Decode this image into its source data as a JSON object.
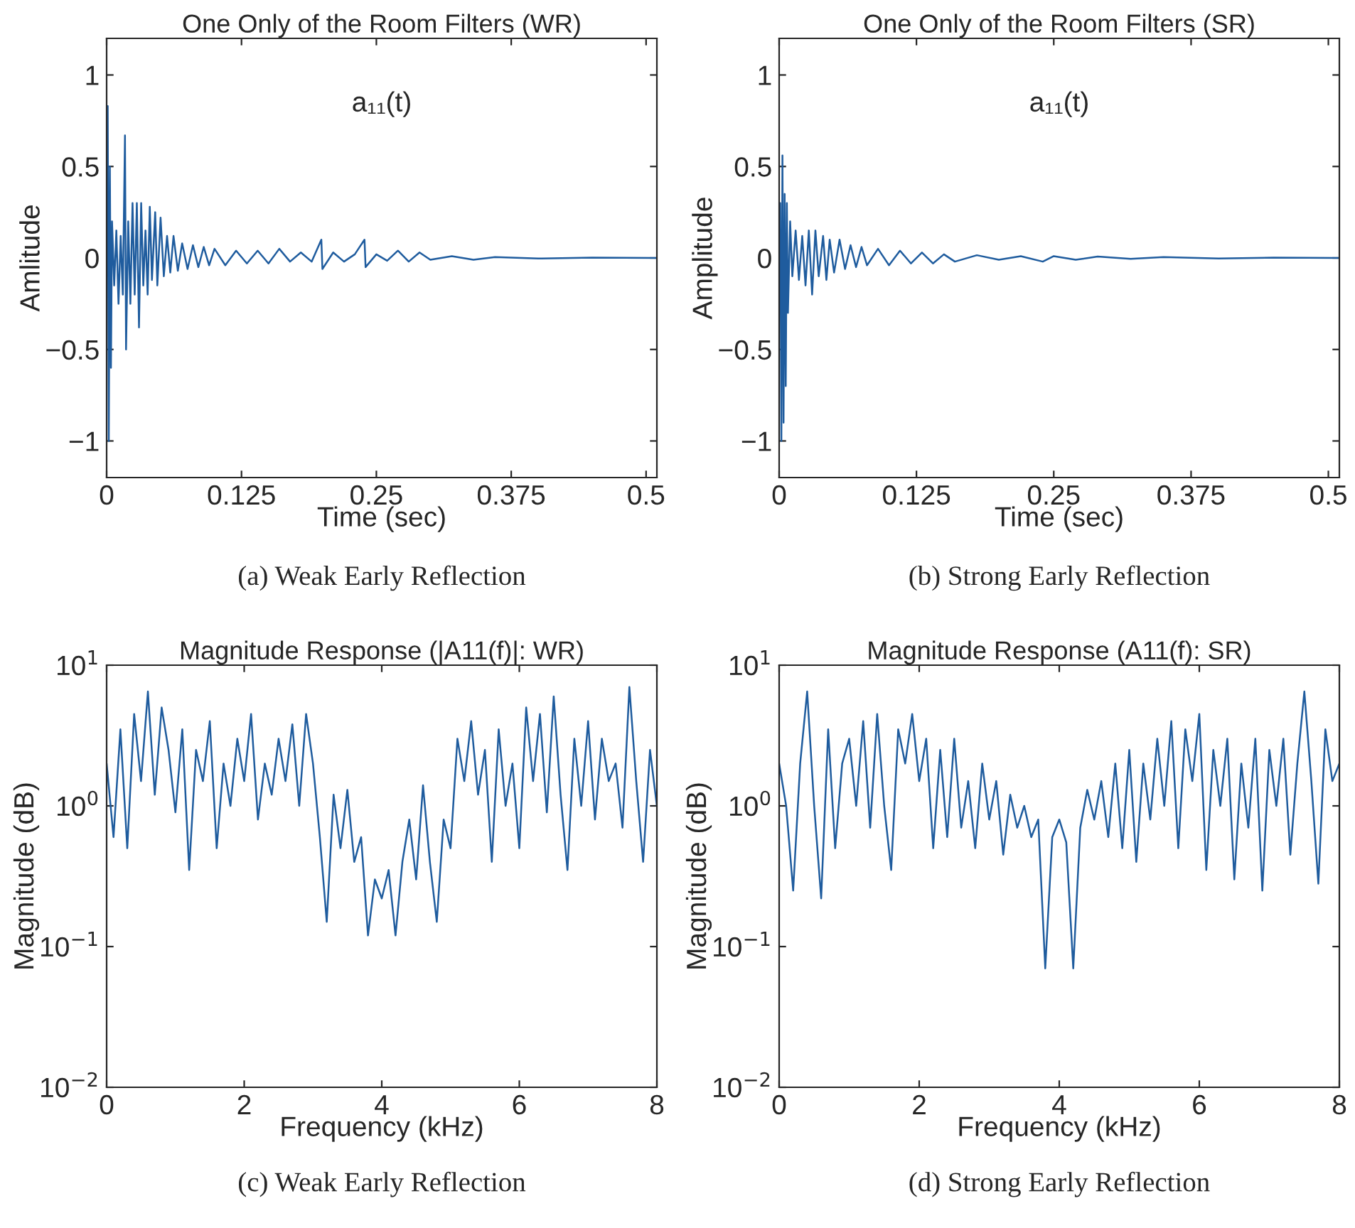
{
  "chart_data": [
    {
      "type": "line",
      "title": "One Only of the Room Filters (WR)",
      "xlabel": "Time (sec)",
      "ylabel": "Amlitude",
      "annotations": [
        "a₁₁(t)",
        "(a) Weak Early Reflection"
      ],
      "xlim": [
        0,
        0.51
      ],
      "ylim": [
        -1.2,
        1.2
      ],
      "xticks": [
        0,
        0.125,
        0.25,
        0.375,
        0.5
      ],
      "yticks": [
        {
          "value": -1,
          "label": "−1"
        },
        {
          "value": -0.5,
          "label": "−0.5"
        },
        0,
        0.5,
        1
      ],
      "x": [
        0,
        0.001,
        0.002,
        0.003,
        0.004,
        0.005,
        0.007,
        0.009,
        0.011,
        0.013,
        0.015,
        0.017,
        0.018,
        0.02,
        0.022,
        0.024,
        0.026,
        0.028,
        0.03,
        0.032,
        0.034,
        0.036,
        0.038,
        0.04,
        0.042,
        0.045,
        0.047,
        0.05,
        0.053,
        0.056,
        0.059,
        0.062,
        0.066,
        0.07,
        0.075,
        0.08,
        0.085,
        0.09,
        0.095,
        0.1,
        0.11,
        0.12,
        0.13,
        0.14,
        0.15,
        0.16,
        0.17,
        0.18,
        0.19,
        0.199,
        0.2,
        0.21,
        0.22,
        0.23,
        0.239,
        0.24,
        0.25,
        0.26,
        0.27,
        0.28,
        0.29,
        0.3,
        0.32,
        0.34,
        0.36,
        0.4,
        0.45,
        0.51
      ],
      "series": [
        {
          "color": "#1f5c9e",
          "values": [
            0,
            0.83,
            -1.0,
            0.5,
            -0.6,
            0.2,
            -0.15,
            0.15,
            -0.25,
            0.12,
            -0.2,
            0.67,
            -0.5,
            0.2,
            -0.25,
            0.3,
            -0.2,
            0.3,
            -0.38,
            0.3,
            -0.15,
            0.15,
            -0.2,
            0.28,
            -0.12,
            0.25,
            -0.15,
            0.22,
            -0.1,
            0.12,
            -0.08,
            0.12,
            -0.07,
            0.08,
            -0.06,
            0.07,
            -0.05,
            0.06,
            -0.04,
            0.05,
            -0.04,
            0.04,
            -0.03,
            0.04,
            -0.03,
            0.05,
            -0.02,
            0.03,
            -0.02,
            0.1,
            -0.06,
            0.03,
            -0.02,
            0.02,
            0.1,
            -0.05,
            0.02,
            -0.015,
            0.04,
            -0.02,
            0.03,
            -0.01,
            0.01,
            -0.01,
            0.005,
            -0.003,
            0.002,
            0
          ]
        }
      ]
    },
    {
      "type": "line",
      "title": "One Only of the Room Filters (SR)",
      "xlabel": "Time (sec)",
      "ylabel": "Amplitude",
      "annotations": [
        "a₁₁(t)",
        "(b) Strong Early Reflection"
      ],
      "xlim": [
        0,
        0.51
      ],
      "ylim": [
        -1.2,
        1.2
      ],
      "xticks": [
        0,
        0.125,
        0.25,
        0.375,
        0.5
      ],
      "yticks": [
        {
          "value": -1,
          "label": "−1"
        },
        {
          "value": -0.5,
          "label": "−0.5"
        },
        0,
        0.5,
        1
      ],
      "x": [
        0,
        0.001,
        0.002,
        0.003,
        0.004,
        0.005,
        0.006,
        0.007,
        0.008,
        0.01,
        0.012,
        0.015,
        0.018,
        0.021,
        0.024,
        0.027,
        0.03,
        0.033,
        0.036,
        0.04,
        0.043,
        0.046,
        0.05,
        0.055,
        0.06,
        0.065,
        0.07,
        0.075,
        0.08,
        0.09,
        0.1,
        0.11,
        0.12,
        0.13,
        0.14,
        0.15,
        0.16,
        0.18,
        0.2,
        0.22,
        0.24,
        0.25,
        0.27,
        0.29,
        0.32,
        0.35,
        0.4,
        0.45,
        0.51
      ],
      "series": [
        {
          "color": "#1f5c9e",
          "values": [
            0,
            0.3,
            -1.0,
            0.56,
            -0.9,
            0.35,
            -0.7,
            0.3,
            -0.3,
            0.2,
            -0.1,
            0.15,
            -0.12,
            0.12,
            -0.15,
            0.15,
            -0.2,
            0.15,
            -0.1,
            0.12,
            -0.12,
            0.1,
            -0.08,
            0.1,
            -0.06,
            0.07,
            -0.05,
            0.06,
            -0.04,
            0.05,
            -0.04,
            0.04,
            -0.03,
            0.03,
            -0.03,
            0.02,
            -0.02,
            0.015,
            -0.01,
            0.01,
            -0.02,
            0.01,
            -0.01,
            0.008,
            -0.005,
            0.005,
            -0.003,
            0.002,
            0
          ]
        }
      ]
    },
    {
      "type": "line",
      "title": "Magnitude Response (|A11(f)|: WR)",
      "xlabel": "Frequency (kHz)",
      "ylabel": "Magnitude (dB)",
      "log": "y",
      "annotations": [
        "(c) Weak Early Reflection"
      ],
      "xlim": [
        0,
        8
      ],
      "ylim": [
        0.01,
        10
      ],
      "xticks": [
        0,
        2,
        4,
        6,
        8
      ],
      "yticks": [
        {
          "value": 0.01,
          "label": "10$^{−2}$"
        },
        {
          "value": 0.1,
          "label": "10$^{−1}$"
        },
        {
          "value": 1,
          "label": "10$^{0}$"
        },
        {
          "value": 10,
          "label": "10$^{1}$"
        }
      ],
      "x": [
        0,
        0.1,
        0.2,
        0.3,
        0.4,
        0.5,
        0.6,
        0.7,
        0.8,
        0.9,
        1.0,
        1.1,
        1.2,
        1.3,
        1.4,
        1.5,
        1.6,
        1.7,
        1.8,
        1.9,
        2.0,
        2.1,
        2.2,
        2.3,
        2.4,
        2.5,
        2.6,
        2.7,
        2.8,
        2.9,
        3.0,
        3.1,
        3.2,
        3.3,
        3.4,
        3.5,
        3.6,
        3.7,
        3.8,
        3.9,
        4.0,
        4.1,
        4.2,
        4.3,
        4.4,
        4.5,
        4.6,
        4.7,
        4.8,
        4.9,
        5.0,
        5.1,
        5.2,
        5.3,
        5.4,
        5.5,
        5.6,
        5.7,
        5.8,
        5.9,
        6.0,
        6.1,
        6.2,
        6.3,
        6.4,
        6.5,
        6.6,
        6.7,
        6.8,
        6.9,
        7.0,
        7.1,
        7.2,
        7.3,
        7.4,
        7.5,
        7.6,
        7.7,
        7.8,
        7.9,
        8.0
      ],
      "series": [
        {
          "color": "#1f5c9e",
          "values": [
            2.0,
            0.6,
            3.5,
            0.5,
            4.5,
            1.5,
            6.5,
            1.2,
            5.0,
            2.5,
            0.9,
            3.5,
            0.35,
            2.5,
            1.5,
            4.0,
            0.5,
            2.0,
            1.0,
            3.0,
            1.5,
            4.5,
            0.8,
            2.0,
            1.2,
            3.0,
            1.5,
            3.8,
            1.0,
            4.5,
            2.0,
            0.6,
            0.15,
            1.2,
            0.5,
            1.3,
            0.4,
            0.6,
            0.12,
            0.3,
            0.22,
            0.35,
            0.12,
            0.4,
            0.8,
            0.3,
            1.4,
            0.4,
            0.15,
            0.8,
            0.5,
            3.0,
            1.5,
            4.0,
            1.2,
            2.5,
            0.4,
            3.5,
            1.0,
            2.0,
            0.5,
            5.0,
            1.5,
            4.5,
            0.9,
            6.0,
            1.2,
            0.35,
            3.0,
            1.0,
            4.0,
            0.8,
            3.0,
            1.5,
            2.0,
            0.7,
            7.0,
            1.5,
            0.4,
            2.5,
            1.0
          ]
        }
      ]
    },
    {
      "type": "line",
      "title": "Magnitude Response (A11(f): SR)",
      "xlabel": "Frequency (kHz)",
      "ylabel": "Magnitude (dB)",
      "log": "y",
      "annotations": [
        "(d) Strong Early Reflection"
      ],
      "xlim": [
        0,
        8
      ],
      "ylim": [
        0.01,
        10
      ],
      "xticks": [
        0,
        2,
        4,
        6,
        8
      ],
      "yticks": [
        {
          "value": 0.01,
          "label": "10$^{−2}$"
        },
        {
          "value": 0.1,
          "label": "10$^{−1}$"
        },
        {
          "value": 1,
          "label": "10$^{0}$"
        },
        {
          "value": 10,
          "label": "10$^{1}$"
        }
      ],
      "x": [
        0,
        0.1,
        0.2,
        0.3,
        0.4,
        0.5,
        0.6,
        0.7,
        0.8,
        0.9,
        1.0,
        1.1,
        1.2,
        1.3,
        1.4,
        1.5,
        1.6,
        1.7,
        1.8,
        1.9,
        2.0,
        2.1,
        2.2,
        2.3,
        2.4,
        2.5,
        2.6,
        2.7,
        2.8,
        2.9,
        3.0,
        3.1,
        3.2,
        3.3,
        3.4,
        3.5,
        3.6,
        3.7,
        3.8,
        3.9,
        4.0,
        4.1,
        4.2,
        4.3,
        4.4,
        4.5,
        4.6,
        4.7,
        4.8,
        4.9,
        5.0,
        5.1,
        5.2,
        5.3,
        5.4,
        5.5,
        5.6,
        5.7,
        5.8,
        5.9,
        6.0,
        6.1,
        6.2,
        6.3,
        6.4,
        6.5,
        6.6,
        6.7,
        6.8,
        6.9,
        7.0,
        7.1,
        7.2,
        7.3,
        7.4,
        7.5,
        7.6,
        7.7,
        7.8,
        7.9,
        8.0
      ],
      "series": [
        {
          "color": "#1f5c9e",
          "values": [
            2.0,
            1.0,
            0.25,
            2.0,
            6.5,
            1.0,
            0.22,
            3.5,
            0.5,
            2.0,
            3.0,
            1.0,
            4.0,
            0.7,
            4.5,
            1.0,
            0.35,
            3.5,
            2.0,
            4.5,
            1.5,
            3.0,
            0.5,
            2.5,
            0.6,
            3.0,
            0.7,
            1.5,
            0.5,
            2.0,
            0.8,
            1.5,
            0.45,
            1.2,
            0.7,
            1.0,
            0.6,
            0.8,
            0.07,
            0.6,
            0.8,
            0.55,
            0.07,
            0.7,
            1.3,
            0.8,
            1.5,
            0.6,
            2.0,
            0.5,
            2.5,
            0.4,
            2.0,
            0.8,
            3.0,
            1.0,
            4.0,
            0.5,
            3.5,
            1.5,
            4.5,
            0.35,
            2.5,
            1.0,
            3.0,
            0.3,
            2.0,
            0.7,
            3.0,
            0.25,
            2.5,
            1.0,
            3.0,
            0.45,
            2.0,
            6.5,
            1.5,
            0.28,
            3.5,
            1.5,
            2.0
          ]
        }
      ]
    }
  ]
}
